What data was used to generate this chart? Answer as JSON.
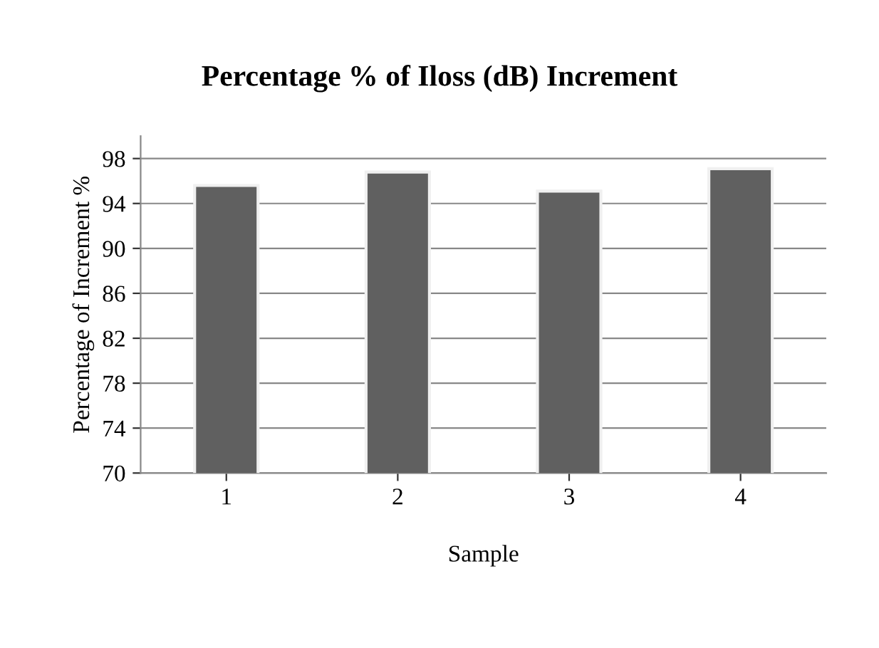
{
  "chart_data": {
    "type": "bar",
    "title": "Percentage % of Iloss (dB) Increment",
    "xlabel": "Sample",
    "ylabel": "Percentage of Increment %",
    "categories": [
      "1",
      "2",
      "3",
      "4"
    ],
    "values": [
      95.6,
      96.8,
      95.1,
      97.1
    ],
    "color": "#606060",
    "ylim": [
      70,
      100
    ],
    "yticks": [
      70,
      74,
      78,
      82,
      86,
      90,
      94,
      98
    ],
    "grid": "y",
    "legend": false
  }
}
